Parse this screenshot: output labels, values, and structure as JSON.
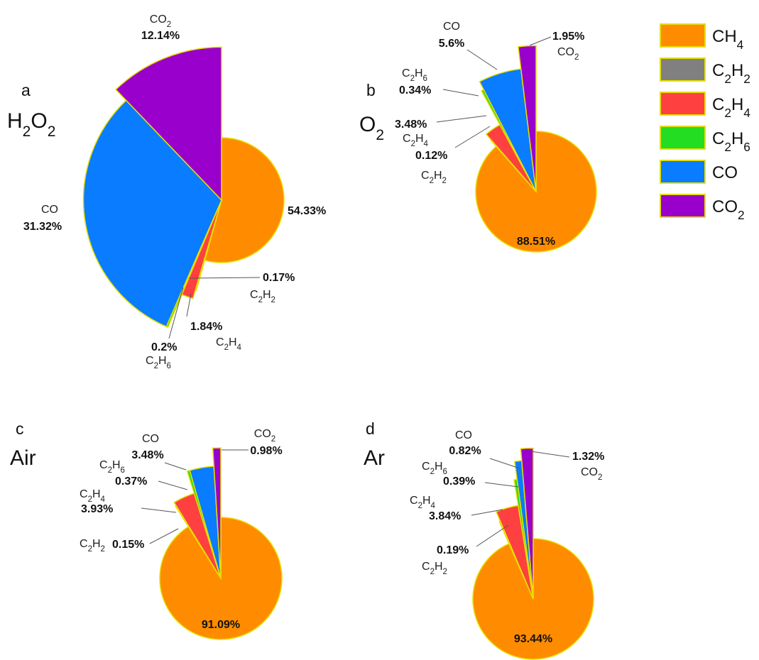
{
  "colors": {
    "CH4": "#ff8c00",
    "C2H2": "#808080",
    "C2H4": "#ff4040",
    "C2H6": "#22dd22",
    "CO": "#0a7cff",
    "CO2": "#9900cc",
    "edge": "#e5e000"
  },
  "legend": [
    {
      "key": "CH4",
      "base": "CH",
      "sub": "4",
      "sub_after": ""
    },
    {
      "key": "C2H2",
      "base": "C",
      "sub": "2",
      "tail": "H",
      "sub2": "2"
    },
    {
      "key": "C2H4",
      "base": "C",
      "sub": "2",
      "tail": "H",
      "sub2": "4"
    },
    {
      "key": "C2H6",
      "base": "C",
      "sub": "2",
      "tail": "H",
      "sub2": "6"
    },
    {
      "key": "CO",
      "base": "CO",
      "sub": "",
      "tail": "",
      "sub2": ""
    },
    {
      "key": "CO2",
      "base": "CO",
      "sub": "2",
      "tail": "",
      "sub2": ""
    }
  ],
  "chart_data": [
    {
      "type": "pie",
      "panel": "a",
      "atmosphere": "H2O2",
      "slices": [
        {
          "name": "CH4",
          "value": 54.33,
          "label": "54.33%"
        },
        {
          "name": "C2H2",
          "value": 0.17,
          "label": "0.17%"
        },
        {
          "name": "C2H4",
          "value": 1.84,
          "label": "1.84%"
        },
        {
          "name": "C2H6",
          "value": 0.2,
          "label": "0.2%"
        },
        {
          "name": "CO",
          "value": 31.32,
          "label": "31.32%"
        },
        {
          "name": "CO2",
          "value": 12.14,
          "label": "12.14%"
        }
      ]
    },
    {
      "type": "pie",
      "panel": "b",
      "atmosphere": "O2",
      "slices": [
        {
          "name": "CH4",
          "value": 88.51,
          "label": "88.51%"
        },
        {
          "name": "C2H2",
          "value": 0.12,
          "label": "0.12%"
        },
        {
          "name": "C2H4",
          "value": 3.48,
          "label": "3.48%"
        },
        {
          "name": "C2H6",
          "value": 0.34,
          "label": "0.34%"
        },
        {
          "name": "CO",
          "value": 5.6,
          "label": "5.6%"
        },
        {
          "name": "CO2",
          "value": 1.95,
          "label": "1.95%"
        }
      ]
    },
    {
      "type": "pie",
      "panel": "c",
      "atmosphere": "Air",
      "slices": [
        {
          "name": "CH4",
          "value": 91.09,
          "label": "91.09%"
        },
        {
          "name": "C2H2",
          "value": 0.15,
          "label": "0.15%"
        },
        {
          "name": "C2H4",
          "value": 3.93,
          "label": "3.93%"
        },
        {
          "name": "C2H6",
          "value": 0.37,
          "label": "0.37%"
        },
        {
          "name": "CO",
          "value": 3.48,
          "label": "3.48%"
        },
        {
          "name": "CO2",
          "value": 0.98,
          "label": "0.98%"
        }
      ]
    },
    {
      "type": "pie",
      "panel": "d",
      "atmosphere": "Ar",
      "slices": [
        {
          "name": "CH4",
          "value": 93.44,
          "label": "93.44%"
        },
        {
          "name": "C2H2",
          "value": 0.19,
          "label": "0.19%"
        },
        {
          "name": "C2H4",
          "value": 3.84,
          "label": "3.84%"
        },
        {
          "name": "C2H6",
          "value": 0.39,
          "label": "0.39%"
        },
        {
          "name": "CO",
          "value": 0.82,
          "label": "0.82%"
        },
        {
          "name": "CO2",
          "value": 1.32,
          "label": "1.32%"
        }
      ]
    }
  ]
}
